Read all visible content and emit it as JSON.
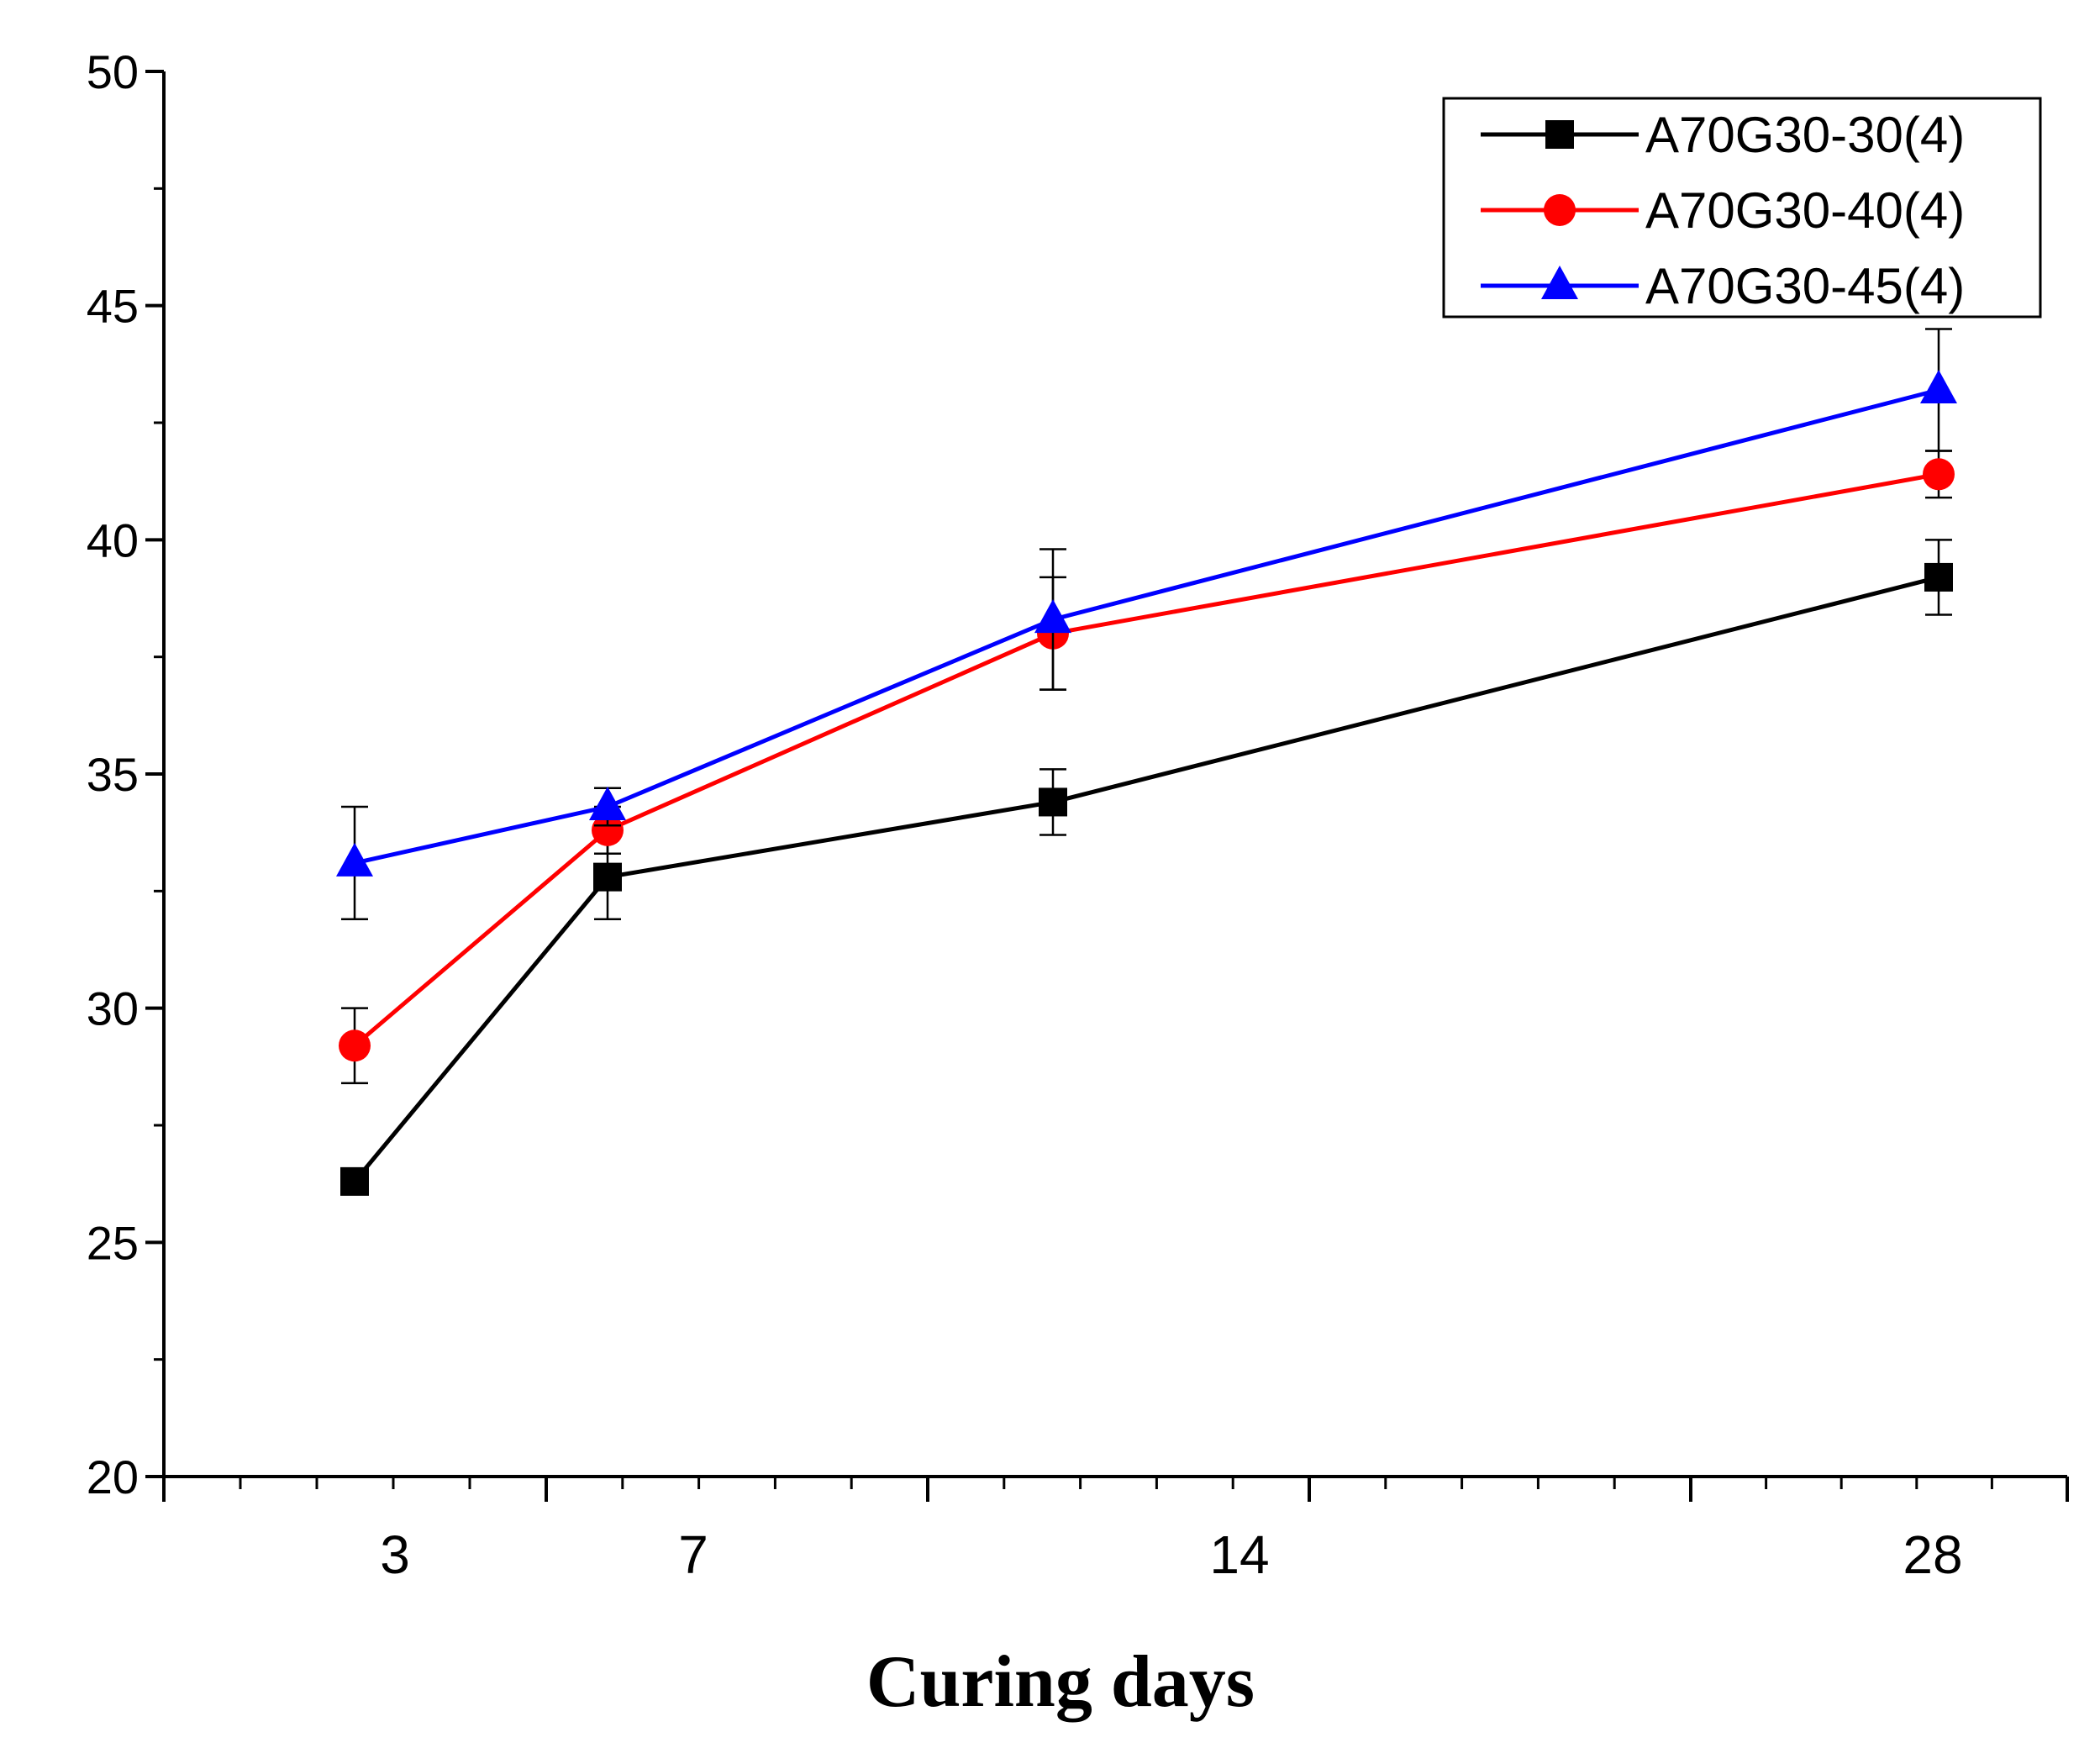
{
  "chart_data": {
    "type": "line",
    "title": "",
    "xlabel": "Curing days",
    "ylabel": "",
    "ylim": [
      20,
      50
    ],
    "yticks": [
      20,
      25,
      30,
      35,
      40,
      45,
      50
    ],
    "xticks": [
      "3",
      "7",
      "14",
      "28"
    ],
    "grid": false,
    "legend_position": "top-right",
    "series": [
      {
        "name": "A70G30-30(4)",
        "color": "#000000",
        "marker": "square",
        "points": [
          {
            "label": "3",
            "y": 26.3,
            "err": 0.0
          },
          {
            "label": "7",
            "y": 32.8,
            "err": 0.9
          },
          {
            "label": "14",
            "y": 34.4,
            "err": 0.7
          },
          {
            "label": "28",
            "y": 39.2,
            "err": 0.8
          }
        ]
      },
      {
        "name": "A70G30-40(4)",
        "color": "#ff0000",
        "marker": "circle",
        "points": [
          {
            "label": "3",
            "y": 29.2,
            "err": 0.8
          },
          {
            "label": "7",
            "y": 33.8,
            "err": 0.5
          },
          {
            "label": "14",
            "y": 38.0,
            "err": 1.2
          },
          {
            "label": "28",
            "y": 41.4,
            "err": 0.5
          }
        ]
      },
      {
        "name": "A70G30-45(4)",
        "color": "#0000ff",
        "marker": "triangle",
        "points": [
          {
            "label": "3",
            "y": 33.1,
            "err": 1.2
          },
          {
            "label": "7",
            "y": 34.3,
            "err": 0.4
          },
          {
            "label": "14",
            "y": 38.3,
            "err": 1.5
          },
          {
            "label": "28",
            "y": 43.2,
            "err": 1.3
          }
        ]
      }
    ]
  }
}
